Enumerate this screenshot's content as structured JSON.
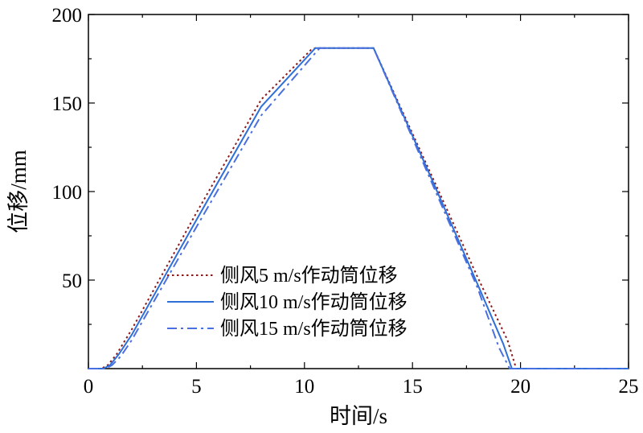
{
  "chart_data": {
    "type": "line",
    "title": "",
    "xlabel": "时间/s",
    "ylabel": "位移/mm",
    "xlim": [
      0,
      25
    ],
    "ylim": [
      0,
      200
    ],
    "x_ticks": [
      0,
      5,
      10,
      15,
      20,
      25
    ],
    "y_ticks": [
      50,
      100,
      150,
      200
    ],
    "x_tick_labels": [
      "0",
      "5",
      "10",
      "15",
      "20",
      "25"
    ],
    "y_tick_labels": [
      "50",
      "100",
      "150",
      "200"
    ],
    "grid": false,
    "legend_position": "bottom-left",
    "series": [
      {
        "name": "侧风5 m/s作动筒位移",
        "style": "dotted",
        "color": "#8b1a1a",
        "x": [
          0,
          0.6,
          0.9,
          1.3,
          2.0,
          5.0,
          8.0,
          10.3,
          10.5,
          13.2,
          16.0,
          18.0,
          19.4,
          19.8,
          25
        ],
        "y": [
          0,
          0,
          2,
          8,
          22,
          88,
          152,
          180,
          181,
          181,
          106,
          52,
          16,
          0,
          0
        ]
      },
      {
        "name": "侧风10 m/s作动筒位移",
        "style": "solid",
        "color": "#2e6fd8",
        "x": [
          0,
          0.7,
          1.0,
          1.4,
          2.0,
          5.0,
          8.0,
          10.5,
          10.6,
          13.2,
          16.0,
          18.0,
          19.2,
          19.6,
          25
        ],
        "y": [
          0,
          0,
          2,
          8,
          19,
          84,
          148,
          181,
          181,
          181,
          104,
          48,
          14,
          0,
          0
        ]
      },
      {
        "name": "侧风15 m/s作动筒位移",
        "style": "dashdot",
        "color": "#4a6fe0",
        "x": [
          0,
          0.8,
          1.1,
          1.5,
          2.0,
          5.0,
          8.0,
          10.7,
          10.8,
          13.2,
          16.0,
          18.0,
          19.0,
          19.5,
          25
        ],
        "y": [
          0,
          0,
          2,
          7,
          16,
          80,
          143,
          181,
          181,
          181,
          102,
          46,
          12,
          0,
          0
        ]
      }
    ]
  }
}
